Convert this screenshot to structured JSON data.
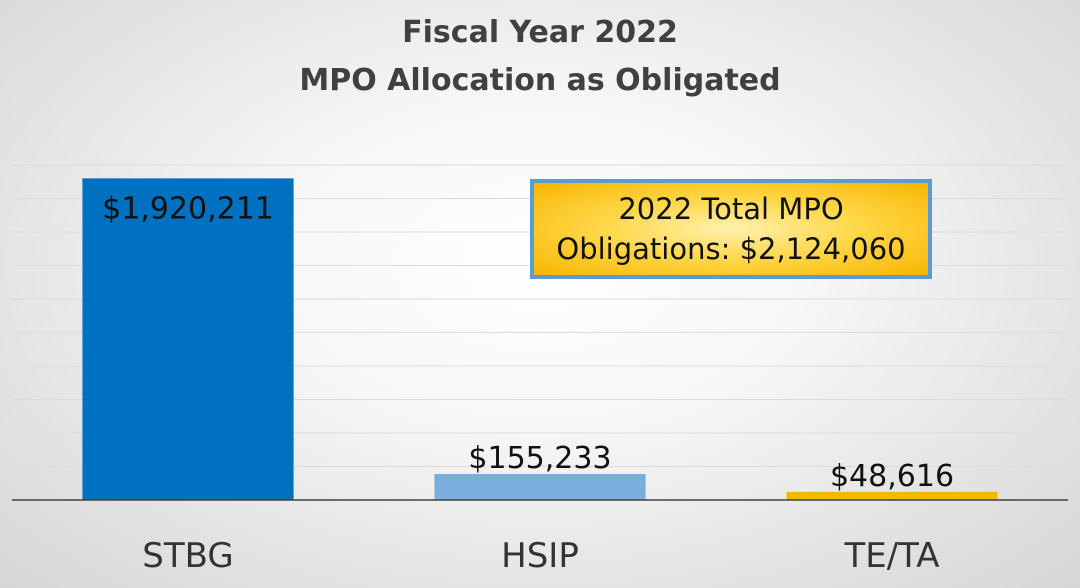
{
  "chart_data": {
    "type": "bar",
    "title": [
      "Fiscal Year 2022",
      "MPO Allocation as Obligated"
    ],
    "categories": [
      "STBG",
      "HSIP",
      "TE/TA"
    ],
    "values": [
      1920211,
      155233,
      48616
    ],
    "data_labels": [
      "$1,920,211",
      "$155,233",
      "$48,616"
    ],
    "bar_colors": [
      "#0070c0",
      "#7aaedc",
      "#f5b800"
    ],
    "ylim": [
      0,
      2000000
    ],
    "grid": true,
    "annotation": {
      "line1": "2022 Total MPO",
      "line2": "Obligations: $2,124,060"
    }
  }
}
